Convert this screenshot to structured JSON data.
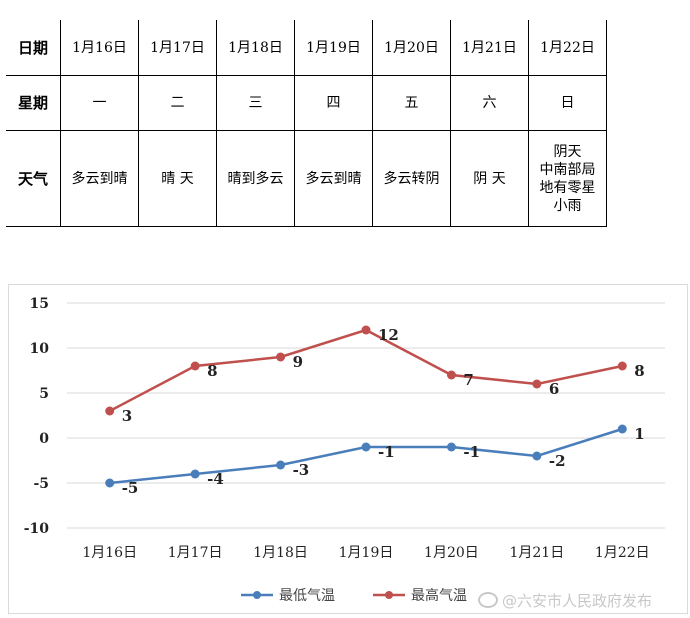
{
  "table": {
    "rows": [
      {
        "header": "日期",
        "cells": [
          "1月16日",
          "1月17日",
          "1月18日",
          "1月19日",
          "1月20日",
          "1月21日",
          "1月22日"
        ]
      },
      {
        "header": "星期",
        "cells": [
          "一",
          "二",
          "三",
          "四",
          "五",
          "六",
          "日"
        ]
      },
      {
        "header": "天气",
        "cells": [
          "多云到晴",
          "晴 天",
          "晴到多云",
          "多云到晴",
          "多云转阴",
          "阴 天",
          "阴天\n中南部局\n地有零星\n小雨"
        ]
      }
    ]
  },
  "chart_data": {
    "type": "line",
    "categories": [
      "1月16日",
      "1月17日",
      "1月18日",
      "1月19日",
      "1月20日",
      "1月21日",
      "1月22日"
    ],
    "series": [
      {
        "name": "最低气温",
        "values": [
          -5,
          -4,
          -3,
          -1,
          -1,
          -2,
          1
        ],
        "color": "#4a7ebb"
      },
      {
        "name": "最高气温",
        "values": [
          3,
          8,
          9,
          12,
          7,
          6,
          8
        ],
        "color": "#c0504d"
      }
    ],
    "y_ticks": [
      "15",
      "10",
      "5",
      "0",
      "-5",
      "-10"
    ],
    "ylim": [
      -10,
      15
    ],
    "grid": true,
    "legend": "bottom"
  },
  "watermark": "@六安市人民政府发布"
}
